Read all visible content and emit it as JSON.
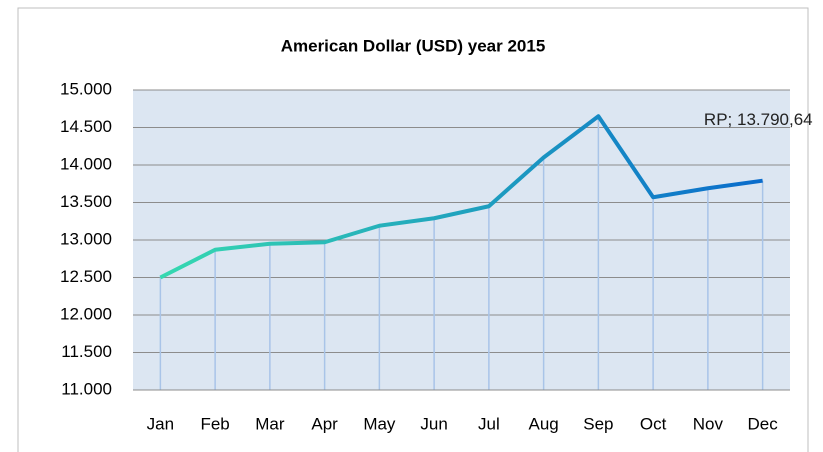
{
  "chart_data": {
    "type": "line",
    "title": "American Dollar  (USD) year 2015",
    "categories": [
      "Jan",
      "Feb",
      "Mar",
      "Apr",
      "May",
      "Jun",
      "Jul",
      "Aug",
      "Sep",
      "Oct",
      "Nov",
      "Dec"
    ],
    "values": [
      12500,
      12870,
      12950,
      12970,
      13190,
      13290,
      13450,
      14100,
      14650,
      13570,
      13690,
      13790.64
    ],
    "value_labels": [
      null,
      null,
      null,
      null,
      null,
      null,
      null,
      null,
      null,
      null,
      null,
      "RP; 13.790,64"
    ],
    "colors": [
      "#36d9b0",
      "#0a6ccc"
    ],
    "plot_color": "#dce6f2",
    "ylim": [
      11000,
      15000
    ],
    "yticks": [
      {
        "value": 11000,
        "label": "11.000"
      },
      {
        "value": 11500,
        "label": "11.500"
      },
      {
        "value": 12000,
        "label": "12.000"
      },
      {
        "value": 12500,
        "label": "12.500"
      },
      {
        "value": 13000,
        "label": "13.000"
      },
      {
        "value": 13500,
        "label": "13.500"
      },
      {
        "value": 14000,
        "label": "14.000"
      },
      {
        "value": 14500,
        "label": "14.500"
      },
      {
        "value": 15000,
        "label": "15.000"
      }
    ],
    "grid": true
  }
}
